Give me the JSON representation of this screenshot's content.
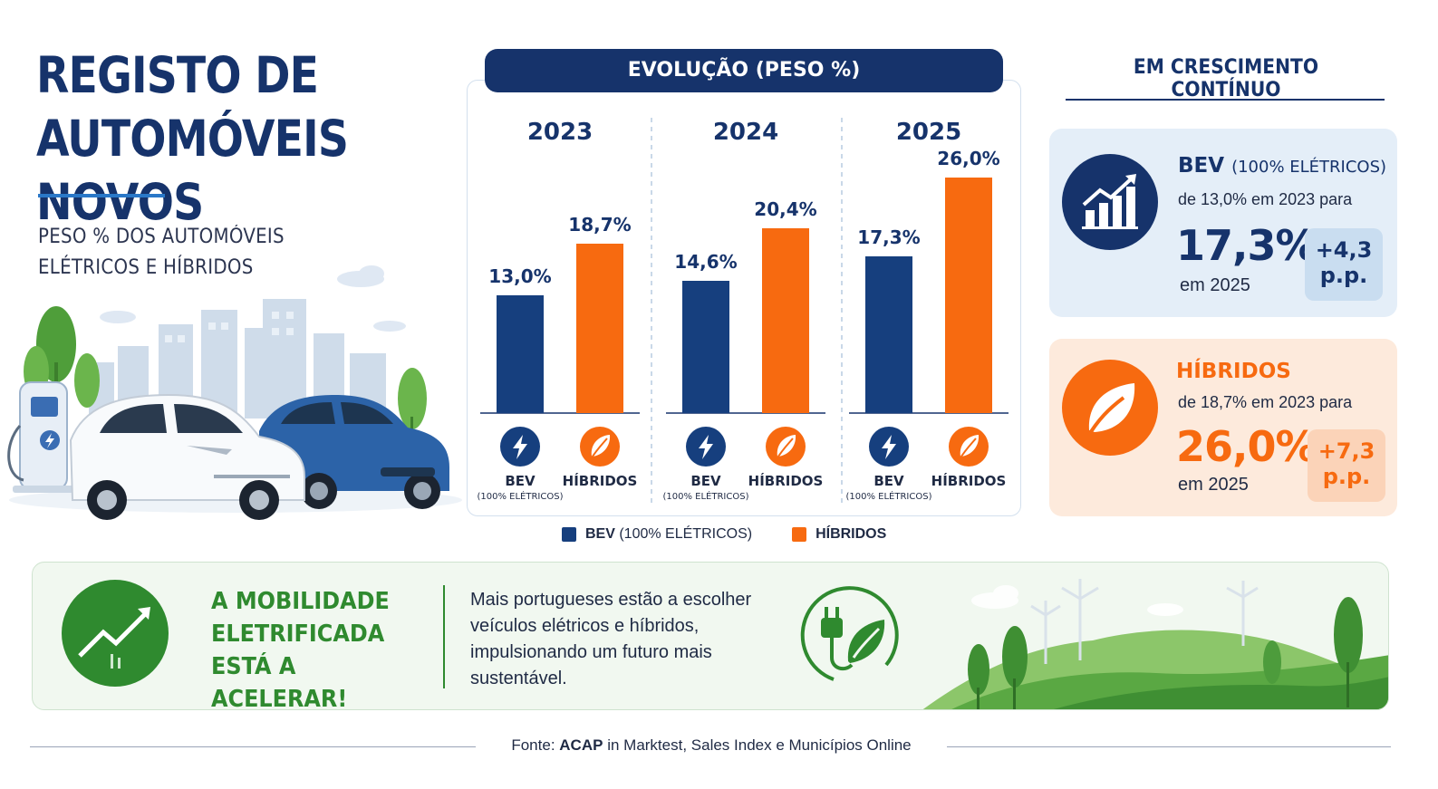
{
  "header": {
    "title": "REGISTO DE AUTOMÓVEIS NOVOS",
    "subtitle": "PESO % DOS AUTOMÓVEIS ELÉTRICOS E HÍBRIDOS"
  },
  "colors": {
    "navy": "#16336b",
    "bev": "#163f7e",
    "hibridos": "#f76a10",
    "green": "#2f8a2f"
  },
  "chart_data": {
    "type": "bar",
    "title": "EVOLUÇÃO (PESO %)",
    "categories": [
      "2023",
      "2024",
      "2025"
    ],
    "series": [
      {
        "name": "BEV (100% ELÉTRICOS)",
        "short": "BEV",
        "sub": "(100% ELÉTRICOS)",
        "values": [
          13.0,
          14.6,
          17.3
        ],
        "labels": [
          "13,0%",
          "14,6%",
          "17,3%"
        ]
      },
      {
        "name": "HÍBRIDOS",
        "short": "HÍBRIDOS",
        "sub": "",
        "values": [
          18.7,
          20.4,
          26.0
        ],
        "labels": [
          "18,7%",
          "20,4%",
          "26,0%"
        ]
      }
    ],
    "ylim": [
      0,
      30
    ],
    "grid": false,
    "legend": "bottom",
    "legend_entries": [
      {
        "bold": "BEV",
        "rest": " (100% ELÉTRICOS)"
      },
      {
        "bold": "HÍBRIDOS",
        "rest": ""
      }
    ]
  },
  "growth": {
    "title": "EM CRESCIMENTO CONTÍNUO",
    "bev": {
      "head": "BEV",
      "head_sub": "(100% ELÉTRICOS)",
      "line": "de 13,0% em 2023 para",
      "value": "17,3%",
      "year": "em 2025",
      "delta_value": "+4,3",
      "delta_unit": "p.p.",
      "icon": "growth-chart-icon"
    },
    "hibridos": {
      "head": "HÍBRIDOS",
      "line": "de 18,7% em 2023 para",
      "value": "26,0%",
      "year": "em 2025",
      "delta_value": "+7,3",
      "delta_unit": "p.p.",
      "icon": "leaf-icon"
    }
  },
  "banner": {
    "headline": "A MOBILIDADE ELETRIFICADA ESTÁ A ACELERAR!",
    "text": "Mais portugueses estão a escolher veículos elétricos e híbridos, impulsionando um futuro mais sustentável.",
    "icons": [
      "trend-up-icon",
      "plug-leaf-icon"
    ]
  },
  "source": {
    "prefix": "Fonte:",
    "org": "ACAP",
    "mid": "in",
    "rest": "Marktest, Sales Index e Municípios Online"
  }
}
